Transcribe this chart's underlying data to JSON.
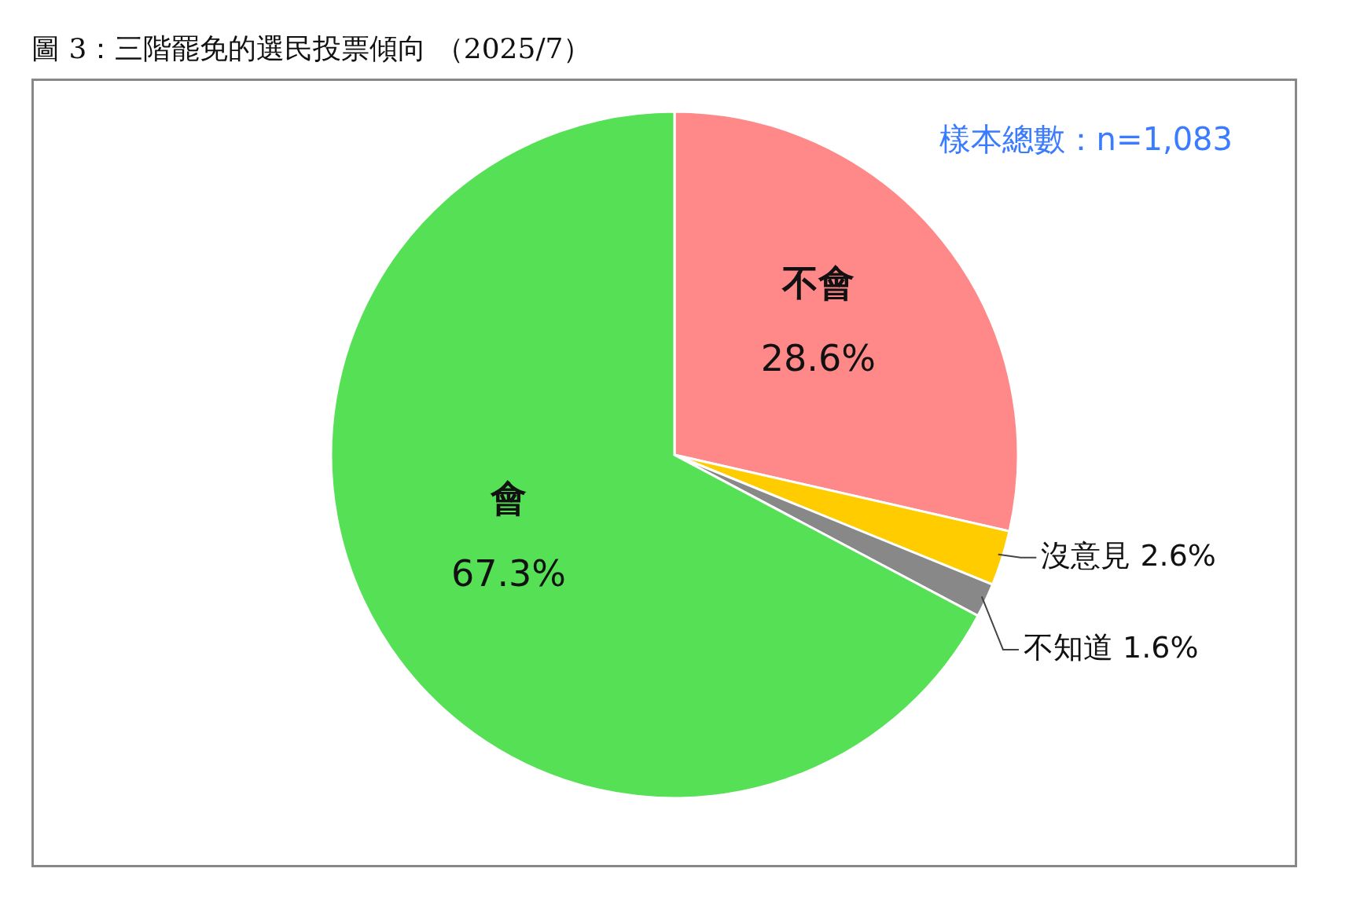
{
  "chart_data": {
    "type": "pie",
    "title": "圖 3：三階罷免的選民投票傾向 （2025/7）",
    "annotations": [
      "樣本總數：n=1,083"
    ],
    "categories": [
      "不會",
      "沒意見",
      "不知道",
      "會"
    ],
    "values": [
      28.6,
      2.6,
      1.6,
      67.3
    ],
    "value_labels": [
      "28.6%",
      "2.6%",
      "1.6%",
      "67.3%"
    ],
    "colors": [
      "#ff8888",
      "#ffcc00",
      "#888888",
      "#55e055"
    ]
  }
}
